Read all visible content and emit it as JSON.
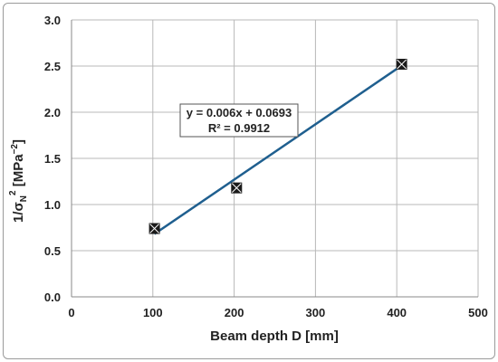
{
  "chart_data": {
    "type": "scatter",
    "xlabel": "Beam depth D [mm]",
    "ylabel": {
      "base": "1/σ",
      "sub": "N",
      "sup": "2",
      "unit": " [MPa",
      "unit_sup": "−2",
      "unit_end": "]"
    },
    "xlim": [
      0,
      500
    ],
    "ylim": [
      0,
      3.0
    ],
    "xticks": [
      0,
      100,
      200,
      300,
      400,
      500
    ],
    "yticks": [
      0.0,
      0.5,
      1.0,
      1.5,
      2.0,
      2.5,
      3.0
    ],
    "xtick_labels": [
      "0",
      "100",
      "200",
      "300",
      "400",
      "500"
    ],
    "ytick_labels": [
      "0.0",
      "0.5",
      "1.0",
      "1.5",
      "2.0",
      "2.5",
      "3.0"
    ],
    "grid": true,
    "series": [
      {
        "points": [
          {
            "x": 102,
            "y": 0.74
          },
          {
            "x": 203,
            "y": 1.18
          },
          {
            "x": 406,
            "y": 2.52
          }
        ],
        "marker_color": "#1a1a1a"
      }
    ],
    "trendline": {
      "slope": 0.006,
      "intercept": 0.0693,
      "x_range": [
        102,
        406
      ],
      "color": "#1f5f8f"
    },
    "annotation": {
      "equation": "y = 0.006x + 0.0693",
      "r_squared": "R² = 0.9912"
    }
  }
}
